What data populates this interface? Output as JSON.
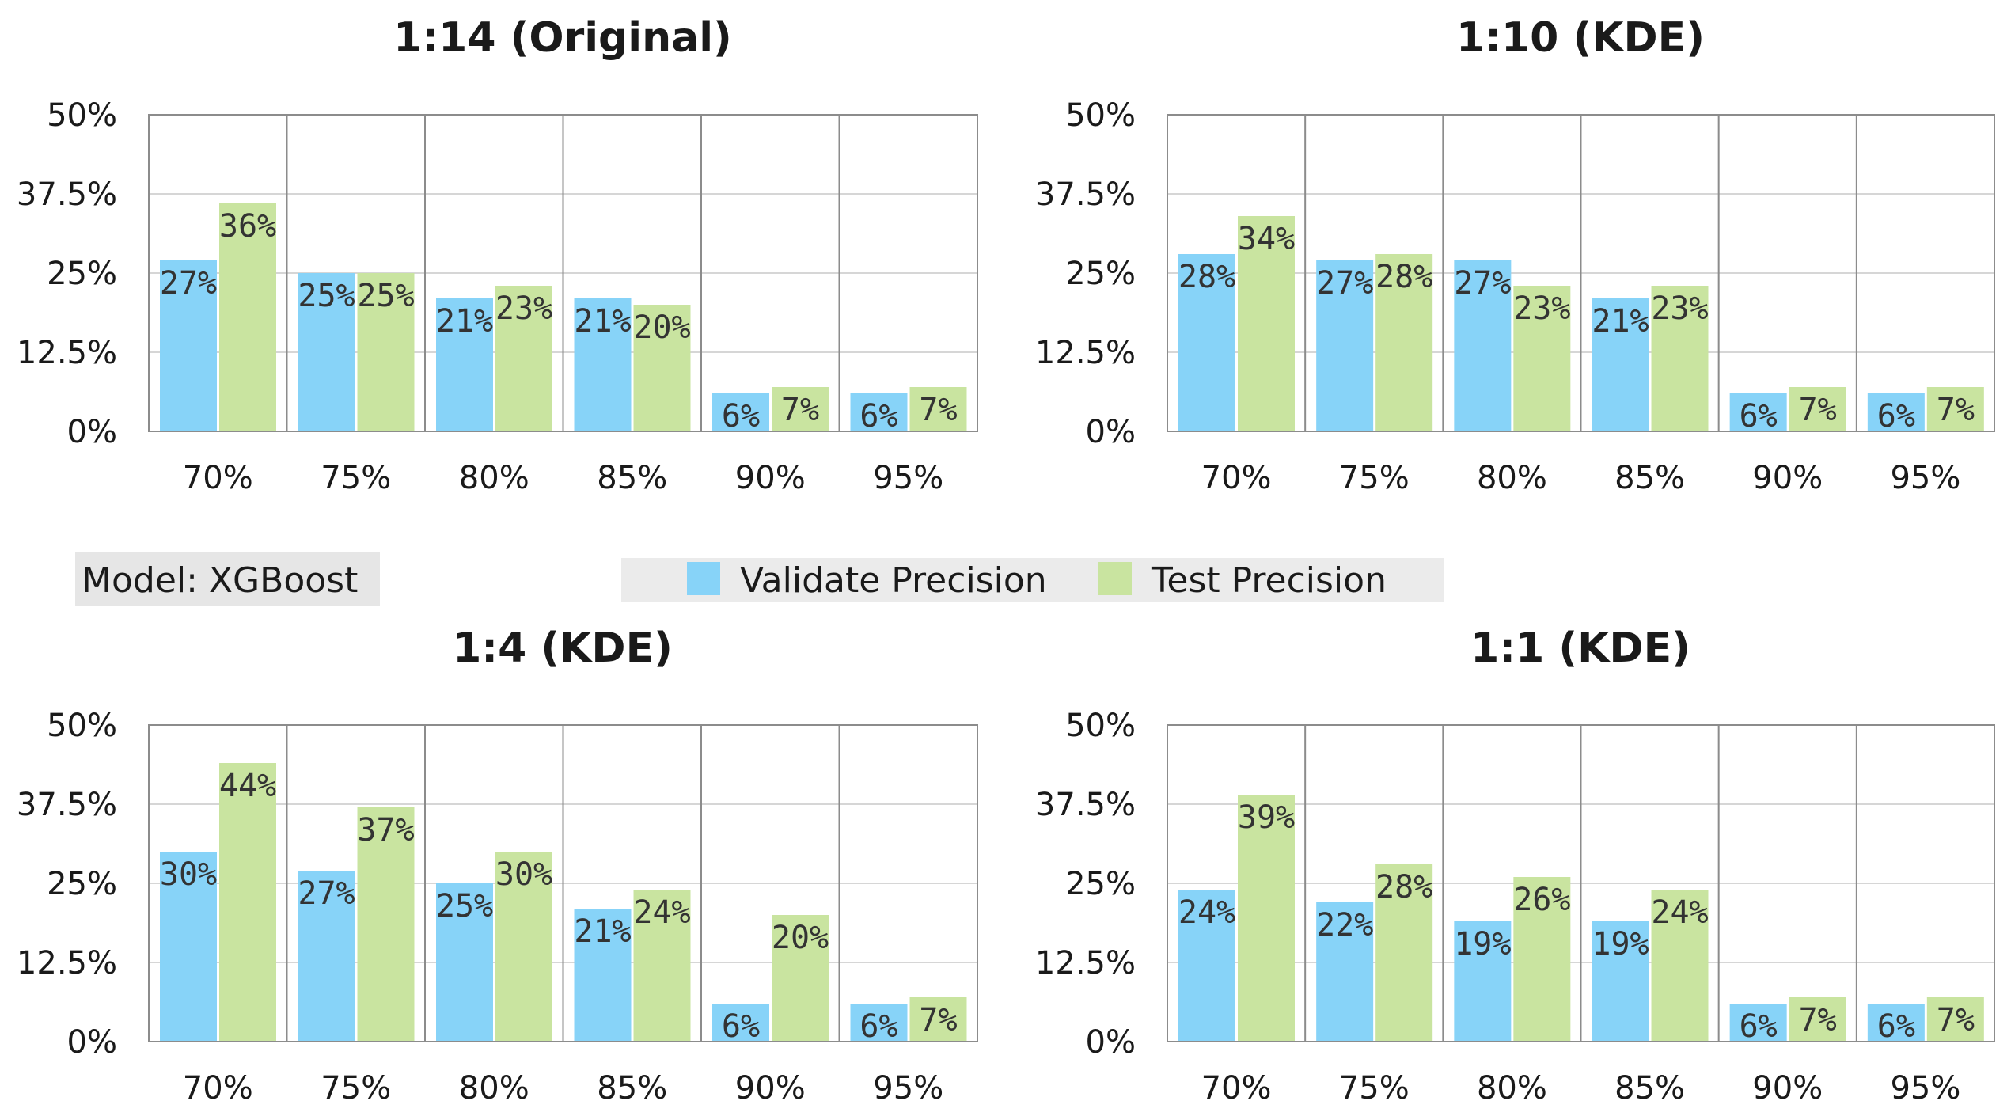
{
  "model_label": "Model: XGBoost",
  "legend": [
    {
      "name": "Validate Precision",
      "color": "#87d3f8"
    },
    {
      "name": "Test Precision",
      "color": "#c9e4a0"
    }
  ],
  "chart_data": [
    {
      "type": "bar",
      "title": "1:14 (Original)",
      "categories": [
        "70%",
        "75%",
        "80%",
        "85%",
        "90%",
        "95%"
      ],
      "ylim": [
        0,
        50
      ],
      "yticks": [
        "0%",
        "12.5%",
        "25%",
        "37.5%",
        "50%"
      ],
      "series": [
        {
          "name": "Validate Precision",
          "values": [
            27,
            25,
            21,
            21,
            6,
            6
          ],
          "labels": [
            "27%",
            "25%",
            "21%",
            "21%",
            "6%",
            "6%"
          ]
        },
        {
          "name": "Test Precision",
          "values": [
            36,
            25,
            23,
            20,
            7,
            7
          ],
          "labels": [
            "36%",
            "25%",
            "23%",
            "20%",
            "7%",
            "7%"
          ]
        }
      ]
    },
    {
      "type": "bar",
      "title": "1:10 (KDE)",
      "categories": [
        "70%",
        "75%",
        "80%",
        "85%",
        "90%",
        "95%"
      ],
      "ylim": [
        0,
        50
      ],
      "yticks": [
        "0%",
        "12.5%",
        "25%",
        "37.5%",
        "50%"
      ],
      "series": [
        {
          "name": "Validate Precision",
          "values": [
            28,
            27,
            27,
            21,
            6,
            6
          ],
          "labels": [
            "28%",
            "27%",
            "27%",
            "21%",
            "6%",
            "6%"
          ]
        },
        {
          "name": "Test Precision",
          "values": [
            34,
            28,
            23,
            23,
            7,
            7
          ],
          "labels": [
            "34%",
            "28%",
            "23%",
            "23%",
            "7%",
            "7%"
          ]
        }
      ]
    },
    {
      "type": "bar",
      "title": "1:4 (KDE)",
      "categories": [
        "70%",
        "75%",
        "80%",
        "85%",
        "90%",
        "95%"
      ],
      "ylim": [
        0,
        50
      ],
      "yticks": [
        "0%",
        "12.5%",
        "25%",
        "37.5%",
        "50%"
      ],
      "series": [
        {
          "name": "Validate Precision",
          "values": [
            30,
            27,
            25,
            21,
            6,
            6
          ],
          "labels": [
            "30%",
            "27%",
            "25%",
            "21%",
            "6%",
            "6%"
          ]
        },
        {
          "name": "Test Precision",
          "values": [
            44,
            37,
            30,
            24,
            20,
            7
          ],
          "labels": [
            "44%",
            "37%",
            "30%",
            "24%",
            "20%",
            "7%"
          ]
        }
      ]
    },
    {
      "type": "bar",
      "title": "1:1 (KDE)",
      "categories": [
        "70%",
        "75%",
        "80%",
        "85%",
        "90%",
        "95%"
      ],
      "ylim": [
        0,
        50
      ],
      "yticks": [
        "0%",
        "12.5%",
        "25%",
        "37.5%",
        "50%"
      ],
      "series": [
        {
          "name": "Validate Precision",
          "values": [
            24,
            22,
            19,
            19,
            6,
            6
          ],
          "labels": [
            "24%",
            "22%",
            "19%",
            "19%",
            "6%",
            "6%"
          ]
        },
        {
          "name": "Test Precision",
          "values": [
            39,
            28,
            26,
            24,
            7,
            7
          ],
          "labels": [
            "39%",
            "28%",
            "26%",
            "24%",
            "7%",
            "7%"
          ]
        }
      ]
    }
  ]
}
